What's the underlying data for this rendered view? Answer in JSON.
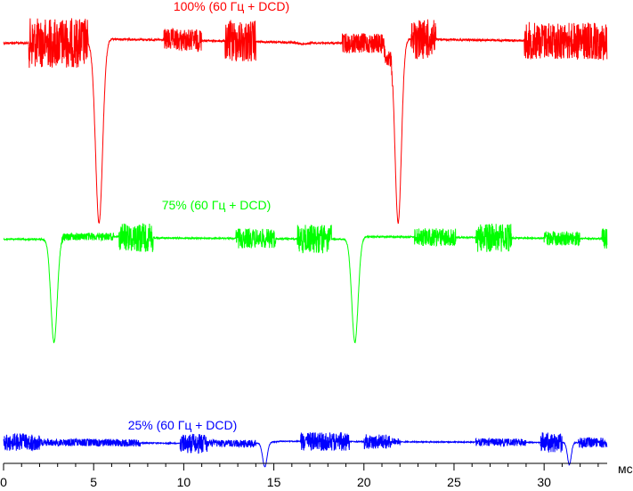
{
  "chart_data": {
    "type": "line",
    "xlabel": "мс",
    "xlim": [
      0,
      33.5
    ],
    "x_ticks": [
      0,
      5,
      10,
      15,
      20,
      25,
      30
    ],
    "x_tick_labels": [
      "0",
      "5",
      "10",
      "15",
      "20",
      "25",
      "30"
    ],
    "x_minor_step": 1,
    "grid": false,
    "legend": "none",
    "series": [
      {
        "name": "100% (60 Гц + DCD)",
        "color": "#ff0000",
        "noise": [
          [
            1.4,
            4.7,
            1.0
          ],
          [
            8.9,
            11.0,
            0.45
          ],
          [
            12.3,
            14.0,
            0.85
          ],
          [
            18.8,
            21.6,
            0.4
          ],
          [
            22.6,
            24.0,
            0.8
          ],
          [
            28.9,
            33.5,
            0.75
          ]
        ],
        "dips": [
          [
            5.3,
            1.0,
            0.55
          ],
          [
            21.9,
            1.0,
            0.5
          ],
          [
            21.3,
            0.12,
            0.3
          ]
        ],
        "baseline": [
          [
            0,
            0.85
          ],
          [
            4.5,
            0.85
          ],
          [
            5.0,
            0.84
          ],
          [
            6.0,
            0.93
          ],
          [
            11.0,
            0.9
          ],
          [
            16.0,
            0.86
          ],
          [
            16.6,
            0.83
          ],
          [
            17.1,
            0.85
          ],
          [
            21.2,
            0.84
          ],
          [
            22.4,
            0.93
          ],
          [
            28.6,
            0.9
          ],
          [
            33.5,
            0.88
          ]
        ]
      },
      {
        "name": "75% (60 Гц + DCD)",
        "color": "#00ff00",
        "noise": [
          [
            3.2,
            6.1,
            0.22
          ],
          [
            6.4,
            8.3,
            0.8
          ],
          [
            12.9,
            15.1,
            0.55
          ],
          [
            16.3,
            18.2,
            0.8
          ],
          [
            22.8,
            25.1,
            0.5
          ],
          [
            26.2,
            28.2,
            0.8
          ],
          [
            30.0,
            32.0,
            0.4
          ],
          [
            33.2,
            33.5,
            0.6
          ]
        ],
        "dips": [
          [
            2.8,
            1.0,
            0.5
          ],
          [
            19.5,
            1.0,
            0.5
          ]
        ],
        "baseline": [
          [
            0,
            0.87
          ],
          [
            2.2,
            0.87
          ],
          [
            3.1,
            0.93
          ],
          [
            6.0,
            0.93
          ],
          [
            8.4,
            0.9
          ],
          [
            12.0,
            0.89
          ],
          [
            19.0,
            0.87
          ],
          [
            20.2,
            0.93
          ],
          [
            33.5,
            0.88
          ]
        ]
      },
      {
        "name": "25% (60 Гц + DCD)",
        "color": "#0000ff",
        "noise": [
          [
            0,
            2.0,
            0.7
          ],
          [
            2.0,
            7.6,
            0.3
          ],
          [
            9.8,
            11.3,
            0.8
          ],
          [
            11.3,
            14.0,
            0.3
          ],
          [
            16.5,
            19.2,
            0.75
          ],
          [
            20.0,
            21.5,
            0.6
          ],
          [
            21.5,
            22.0,
            0.3
          ],
          [
            26.2,
            29.0,
            0.3
          ],
          [
            29.8,
            31.0,
            0.8
          ],
          [
            31.9,
            33.5,
            0.4
          ]
        ],
        "dips": [
          [
            14.5,
            1.0,
            0.35
          ],
          [
            31.4,
            0.9,
            0.3
          ]
        ],
        "baseline": [
          [
            0,
            0.6
          ],
          [
            13.8,
            0.55
          ],
          [
            15.4,
            0.62
          ],
          [
            33.5,
            0.58
          ]
        ]
      }
    ]
  }
}
